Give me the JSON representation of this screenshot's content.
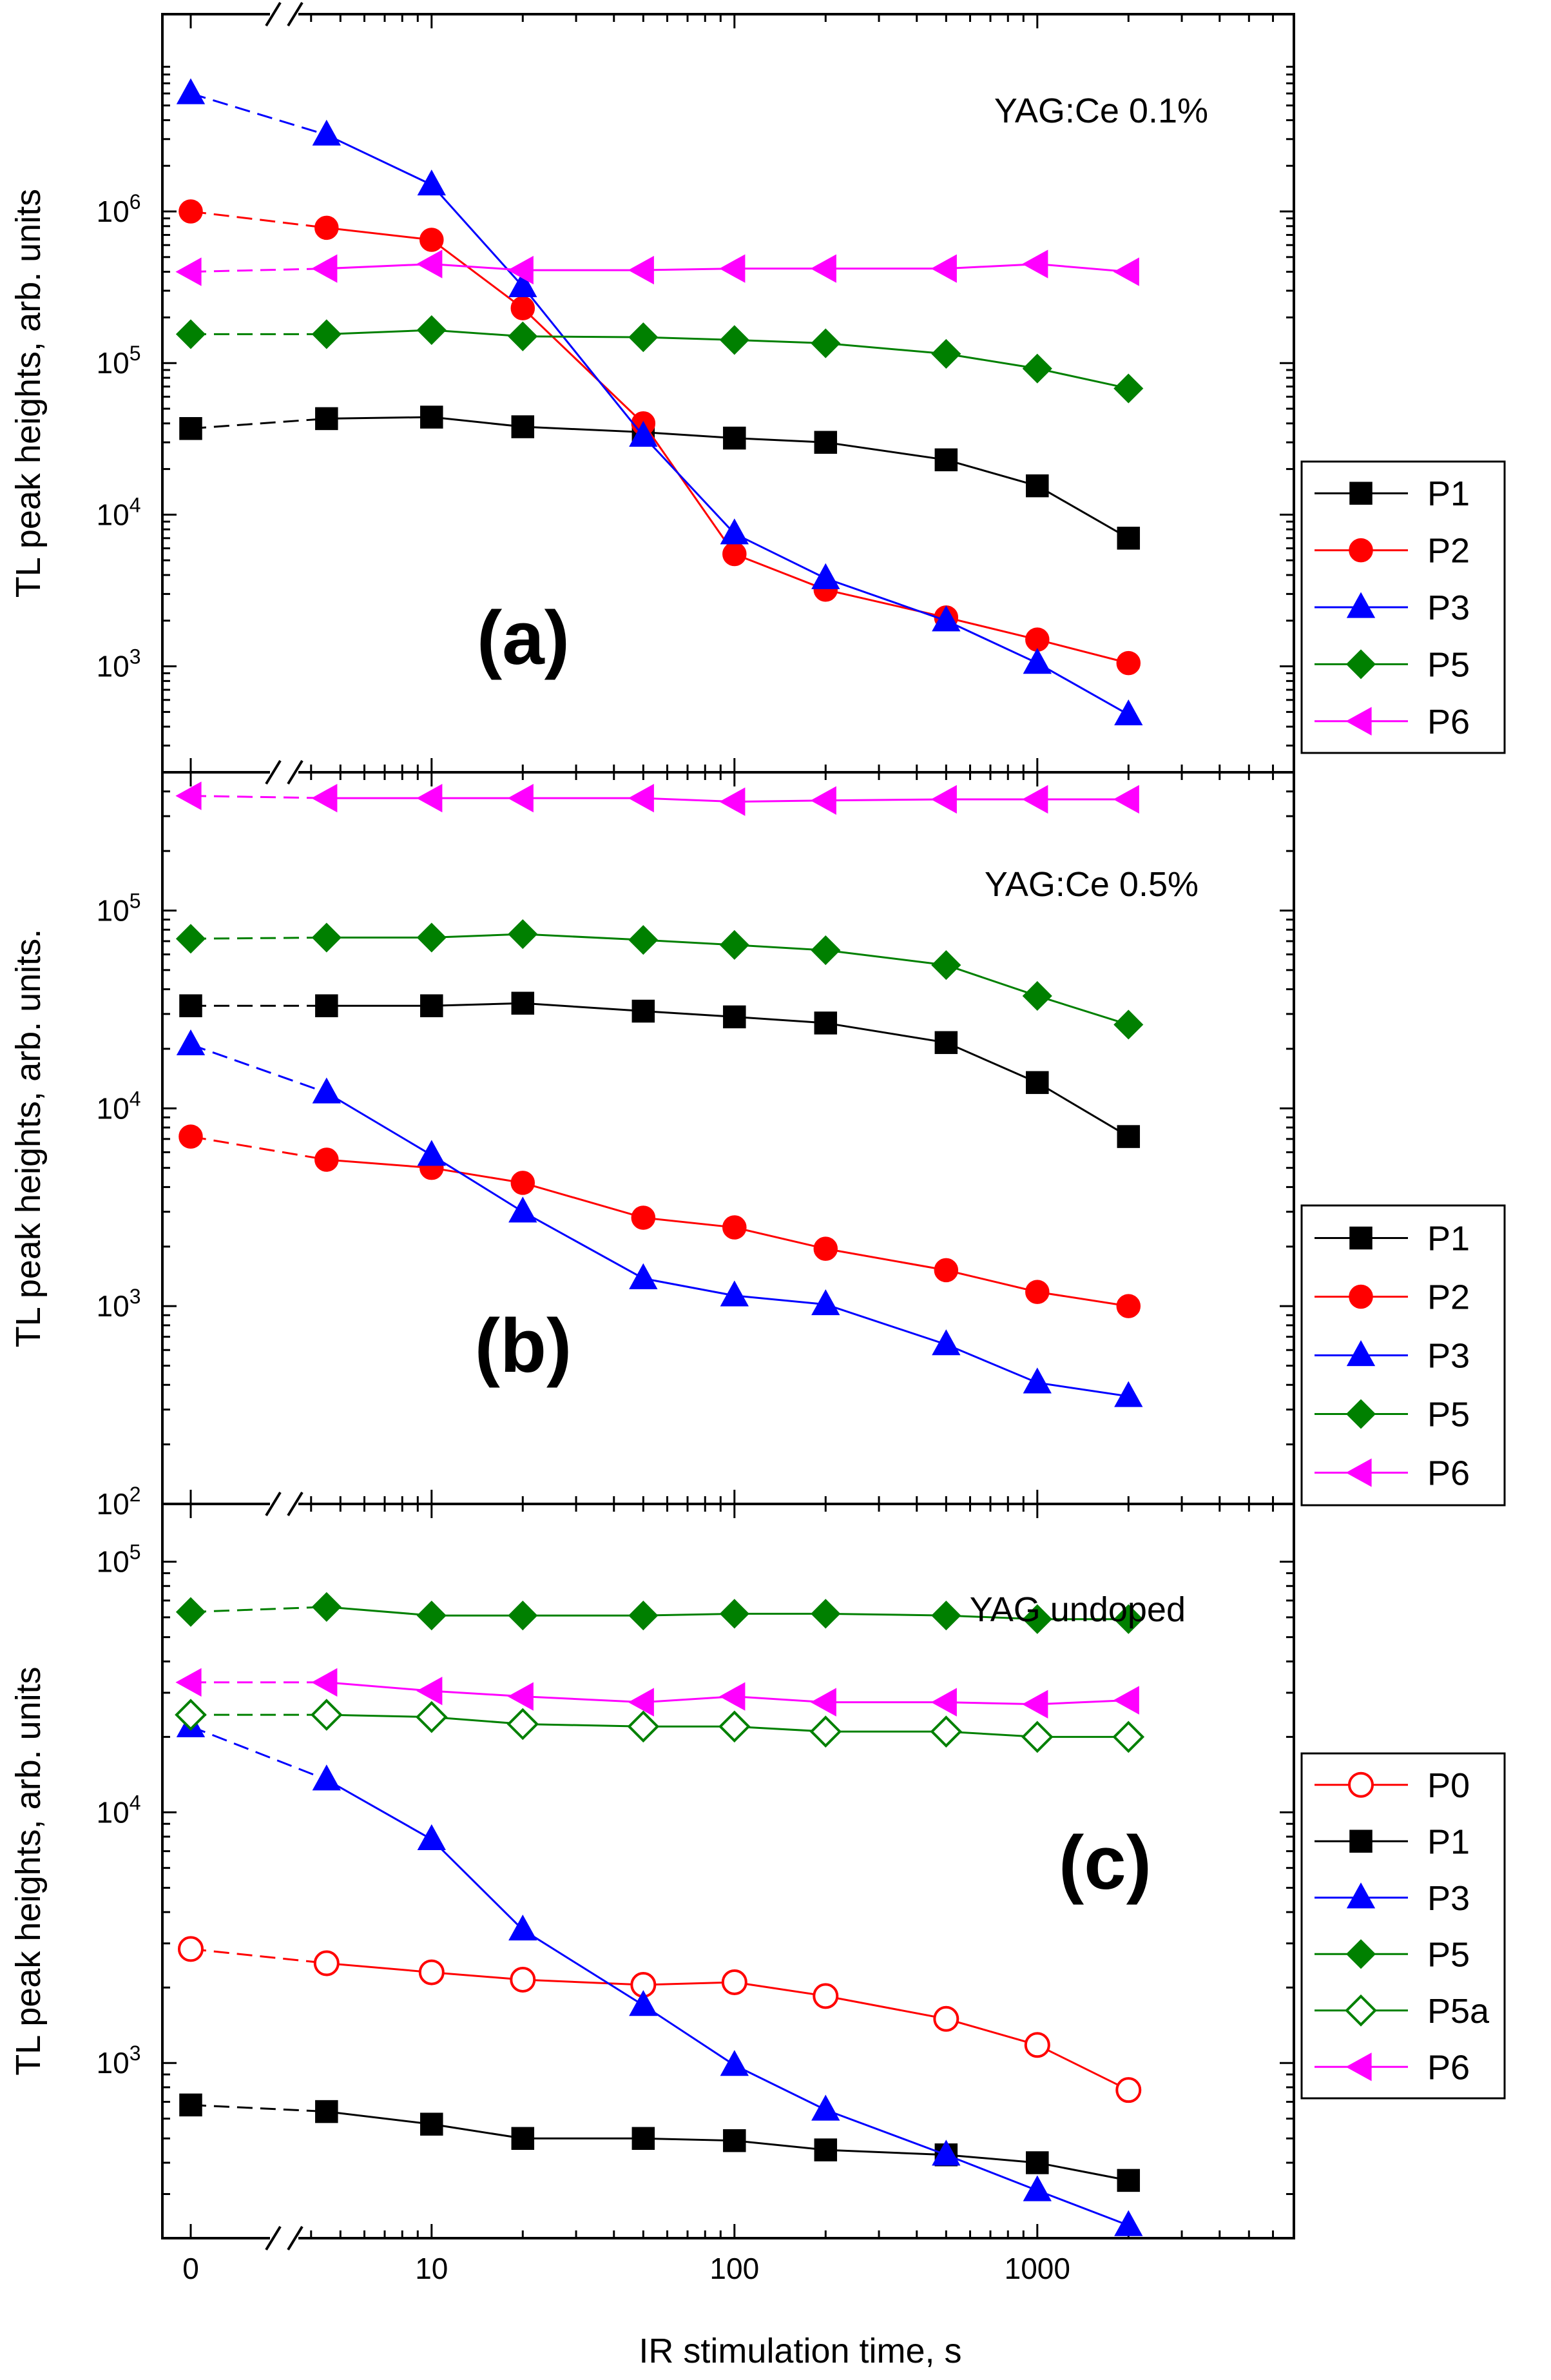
{
  "chart_data": [
    {
      "type": "line",
      "panel": "a",
      "panel_label": "(a)",
      "annotation": "YAG:Ce 0.1%",
      "ylabel": "TL peak heights, arb. units",
      "yscale": "log",
      "ylim": [
        200,
        20000000
      ],
      "yticks": [
        {
          "value": 1000,
          "base": "10",
          "exp": "3"
        },
        {
          "value": 10000,
          "base": "10",
          "exp": "4"
        },
        {
          "value": 100000,
          "base": "10",
          "exp": "5"
        },
        {
          "value": 1000000,
          "base": "10",
          "exp": "6"
        }
      ],
      "x": [
        0,
        4.5,
        10,
        20,
        50,
        100,
        200,
        500,
        1000,
        2000
      ],
      "series": [
        {
          "name": "P1",
          "color": "#000000",
          "marker": "square",
          "filled": true,
          "values": [
            37000,
            43000,
            44000,
            38000,
            35000,
            32000,
            30000,
            23000,
            15500,
            7000
          ]
        },
        {
          "name": "P2",
          "color": "#ff0000",
          "marker": "circle",
          "filled": true,
          "values": [
            1000000,
            780000,
            650000,
            230000,
            40000,
            5500,
            3200,
            2100,
            1500,
            1050
          ]
        },
        {
          "name": "P3",
          "color": "#0000ff",
          "marker": "triangle-up",
          "filled": true,
          "values": [
            6000000,
            3200000,
            1500000,
            320000,
            33000,
            7500,
            3800,
            2000,
            1050,
            480
          ]
        },
        {
          "name": "P5",
          "color": "#008000",
          "marker": "diamond",
          "filled": true,
          "values": [
            155000,
            155000,
            165000,
            150000,
            148000,
            142000,
            135000,
            115000,
            92000,
            68000
          ]
        },
        {
          "name": "P6",
          "color": "#ff00ff",
          "marker": "triangle-left",
          "filled": true,
          "values": [
            400000,
            420000,
            450000,
            410000,
            410000,
            420000,
            420000,
            420000,
            450000,
            400000
          ]
        }
      ],
      "legend": [
        "P1",
        "P2",
        "P3",
        "P5",
        "P6"
      ]
    },
    {
      "type": "line",
      "panel": "b",
      "panel_label": "(b)",
      "annotation": "YAG:Ce 0.5%",
      "ylabel": "TL peak heights, arb. units.",
      "yscale": "log",
      "ylim": [
        100,
        500000
      ],
      "yticks": [
        {
          "value": 100,
          "base": "10",
          "exp": "2"
        },
        {
          "value": 1000,
          "base": "10",
          "exp": "3"
        },
        {
          "value": 10000,
          "base": "10",
          "exp": "4"
        },
        {
          "value": 100000,
          "base": "10",
          "exp": "5"
        }
      ],
      "x": [
        0,
        4.5,
        10,
        20,
        50,
        100,
        200,
        500,
        1000,
        2000
      ],
      "series": [
        {
          "name": "P1",
          "color": "#000000",
          "marker": "square",
          "filled": true,
          "values": [
            33000,
            33000,
            33000,
            34000,
            31000,
            29000,
            27000,
            21500,
            13500,
            7200
          ]
        },
        {
          "name": "P2",
          "color": "#ff0000",
          "marker": "circle",
          "filled": true,
          "values": [
            7200,
            5500,
            5000,
            4200,
            2800,
            2500,
            1950,
            1520,
            1180,
            1000
          ]
        },
        {
          "name": "P3",
          "color": "#0000ff",
          "marker": "triangle-up",
          "filled": true,
          "values": [
            21000,
            12000,
            5800,
            3000,
            1380,
            1130,
            1020,
            640,
            410,
            350
          ]
        },
        {
          "name": "P5",
          "color": "#008000",
          "marker": "diamond",
          "filled": true,
          "values": [
            72000,
            73000,
            73000,
            76000,
            71000,
            67000,
            63000,
            53000,
            37000,
            26500
          ]
        },
        {
          "name": "P6",
          "color": "#ff00ff",
          "marker": "triangle-left",
          "filled": true,
          "values": [
            380000,
            370000,
            370000,
            370000,
            370000,
            355000,
            360000,
            365000,
            365000,
            365000
          ]
        }
      ],
      "legend": [
        "P1",
        "P2",
        "P3",
        "P5",
        "P6"
      ]
    },
    {
      "type": "line",
      "panel": "c",
      "panel_label": "(c)",
      "annotation": "YAG undoped",
      "ylabel": "TL peak heights, arb. units",
      "yscale": "log",
      "ylim": [
        200,
        170000
      ],
      "yticks": [
        {
          "value": 1000,
          "base": "10",
          "exp": "3"
        },
        {
          "value": 10000,
          "base": "10",
          "exp": "4"
        },
        {
          "value": 100000,
          "base": "10",
          "exp": "5"
        }
      ],
      "x": [
        0,
        4.5,
        10,
        20,
        50,
        100,
        200,
        500,
        1000,
        2000
      ],
      "series": [
        {
          "name": "P0",
          "color": "#ff0000",
          "marker": "circle",
          "filled": false,
          "values": [
            2850,
            2500,
            2300,
            2150,
            2050,
            2100,
            1850,
            1500,
            1180,
            780
          ]
        },
        {
          "name": "P1",
          "color": "#000000",
          "marker": "square",
          "filled": true,
          "values": [
            680,
            640,
            570,
            500,
            500,
            490,
            450,
            430,
            400,
            340
          ]
        },
        {
          "name": "P3",
          "color": "#0000ff",
          "marker": "triangle-up",
          "filled": true,
          "values": [
            22000,
            13500,
            7800,
            3400,
            1700,
            980,
            650,
            430,
            310,
            225
          ]
        },
        {
          "name": "P5",
          "color": "#008000",
          "marker": "diamond",
          "filled": true,
          "values": [
            63000,
            66000,
            61000,
            61000,
            61000,
            62000,
            62000,
            61000,
            59000,
            59000
          ]
        },
        {
          "name": "P5a",
          "color": "#008000",
          "marker": "diamond",
          "filled": false,
          "values": [
            24500,
            24500,
            24000,
            22500,
            22000,
            22000,
            21000,
            21000,
            20000,
            20000
          ]
        },
        {
          "name": "P6",
          "color": "#ff00ff",
          "marker": "triangle-left",
          "filled": true,
          "values": [
            33000,
            33000,
            30500,
            29000,
            27500,
            29000,
            27500,
            27500,
            27000,
            28000
          ]
        }
      ],
      "legend": [
        "P0",
        "P1",
        "P3",
        "P5",
        "P5a",
        "P6"
      ]
    }
  ],
  "xaxis": {
    "label": "IR stimulation time, s",
    "scale": "broken: linear zero point + log from ~4 to ~3000",
    "ticks": [
      {
        "value": 0,
        "label": "0"
      },
      {
        "value": 10,
        "label": "10"
      },
      {
        "value": 100,
        "label": "100"
      },
      {
        "value": 1000,
        "label": "1000"
      }
    ]
  }
}
